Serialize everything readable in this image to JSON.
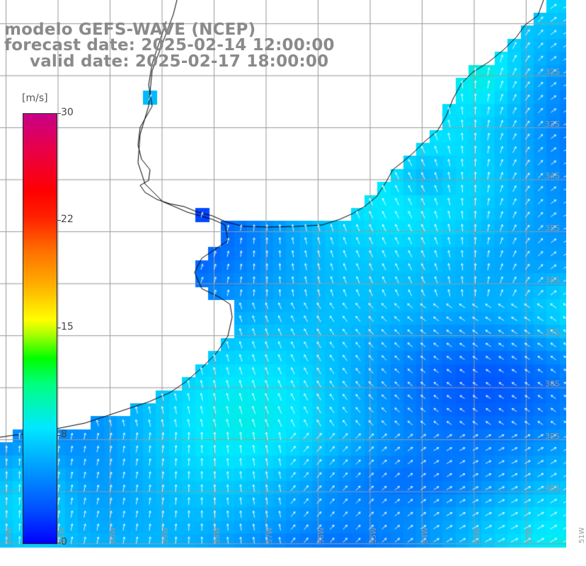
{
  "title": {
    "line1": "modelo GEFS-WAVE (NCEP)",
    "line2": "forecast date: 2025-02-14 12:00:00",
    "line3": "valid date: 2025-02-17 18:00:00"
  },
  "colorbar": {
    "unit": "[m/s]",
    "ticks": [
      "30",
      "22",
      "15",
      "8",
      "0"
    ],
    "colors": [
      "#0000ff",
      "#00a0ff",
      "#00e8ff",
      "#00ff00",
      "#ffff00",
      "#ff7000",
      "#ff0000",
      "#c80088"
    ]
  },
  "lat_labels": [
    "32S",
    "33S",
    "34S",
    "35S",
    "36S",
    "37S",
    "38S",
    "39S",
    "40S"
  ],
  "lon_labels": [
    "62W",
    "61W",
    "60W",
    "59W",
    "58W",
    "57W",
    "56W",
    "55W",
    "54W",
    "53W",
    "52W",
    "51W"
  ],
  "field": {
    "variable": "wind speed",
    "colors": {
      "land": "#ffffff",
      "coast": "#000000",
      "grid": "#999999",
      "arrow": "#ffffff"
    }
  }
}
